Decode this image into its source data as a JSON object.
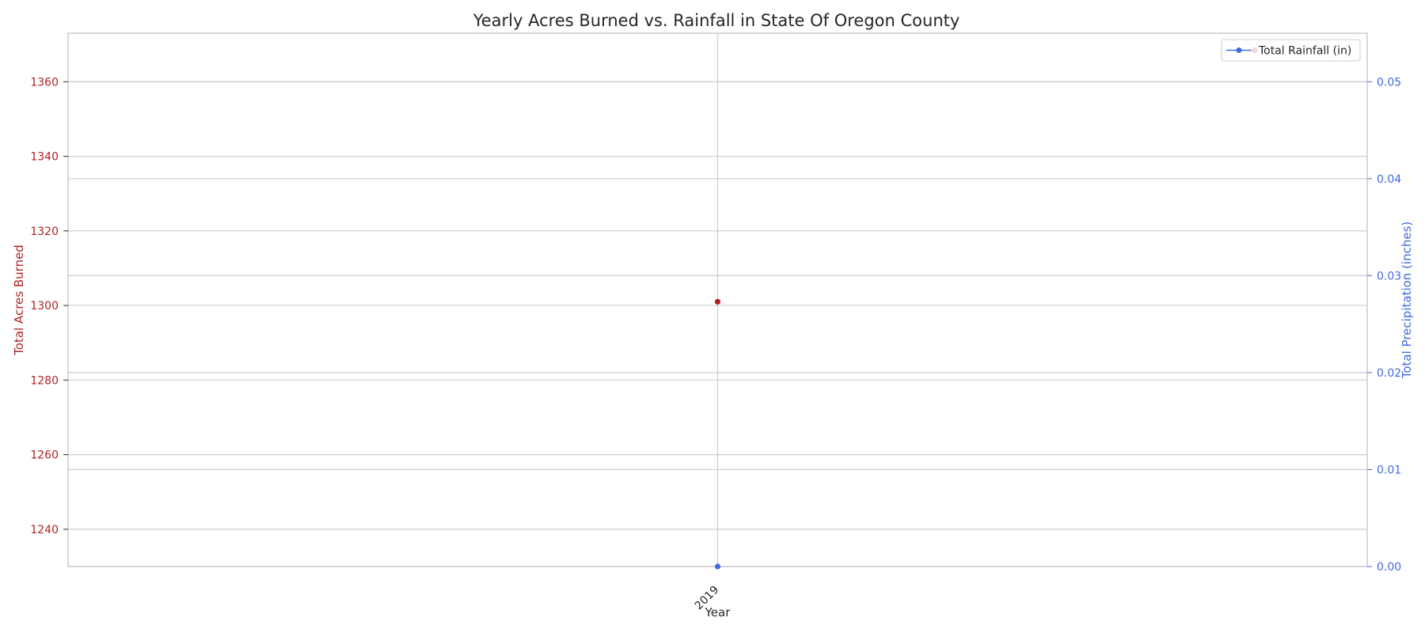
{
  "chart_data": {
    "type": "line",
    "title": "Yearly Acres Burned vs. Rainfall in State Of Oregon County",
    "xlabel": "Year",
    "x_ticks": [
      "2019"
    ],
    "y_left": {
      "label": "Total Acres Burned",
      "color": "#b22222",
      "ylim": [
        1230,
        1373
      ],
      "ticks": [
        "1240",
        "1260",
        "1280",
        "1300",
        "1320",
        "1340",
        "1360"
      ],
      "tick_values": [
        1240,
        1260,
        1280,
        1300,
        1320,
        1340,
        1360
      ]
    },
    "y_right": {
      "label": "Total Precipitation (inches)",
      "color": "#4169e1",
      "ylim": [
        0,
        0.055
      ],
      "ticks": [
        "0.00",
        "0.01",
        "0.02",
        "0.03",
        "0.04",
        "0.05"
      ],
      "tick_values": [
        0,
        0.01,
        0.02,
        0.03,
        0.04,
        0.05
      ]
    },
    "series": [
      {
        "name": "",
        "axis": "left",
        "color": "#b22222",
        "x": [
          "2019"
        ],
        "values": [
          1301
        ]
      },
      {
        "name": "Total Rainfall (in)",
        "axis": "right",
        "color": "#4169e1",
        "x": [
          "2019"
        ],
        "values": [
          0.0
        ]
      }
    ],
    "legend": {
      "position": "top-right",
      "entries": [
        "Total Rainfall (in)"
      ]
    },
    "grid": true
  }
}
